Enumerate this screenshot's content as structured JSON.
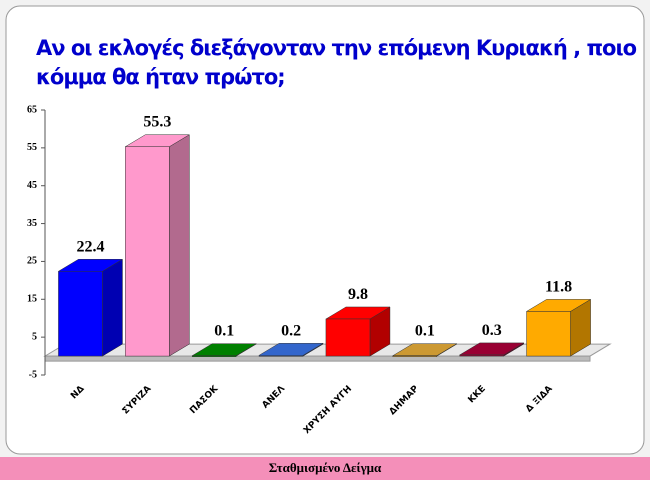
{
  "chart_data": {
    "type": "bar3d",
    "title": [
      "Αν οι εκλογές διεξάγονταν την επόμενη Κυριακή , ποιο",
      "κόμμα θα ήταν πρώτο;"
    ],
    "categories": [
      "ΝΔ",
      "ΣΥΡΙΖΑ",
      "ΠΑΣΟΚ",
      "ΑΝΕΛ",
      "ΧΡΥΣΗ ΑΥΓΗ",
      "ΔΗΜΑΡ",
      "ΚΚΕ",
      "Δ ΞΙΔΑ"
    ],
    "values": [
      22.4,
      55.3,
      0.1,
      0.2,
      9.8,
      0.1,
      0.3,
      11.8
    ],
    "colors": [
      "#0000ff",
      "#ff99cc",
      "#008000",
      "#3366cc",
      "#ff0000",
      "#cc9933",
      "#990033",
      "#ffaa00"
    ],
    "ylim": [
      -5,
      65
    ],
    "yticks": [
      -5,
      5,
      15,
      25,
      35,
      45,
      55,
      65
    ]
  },
  "footer": "Σταθμισμένο Δείγμα"
}
